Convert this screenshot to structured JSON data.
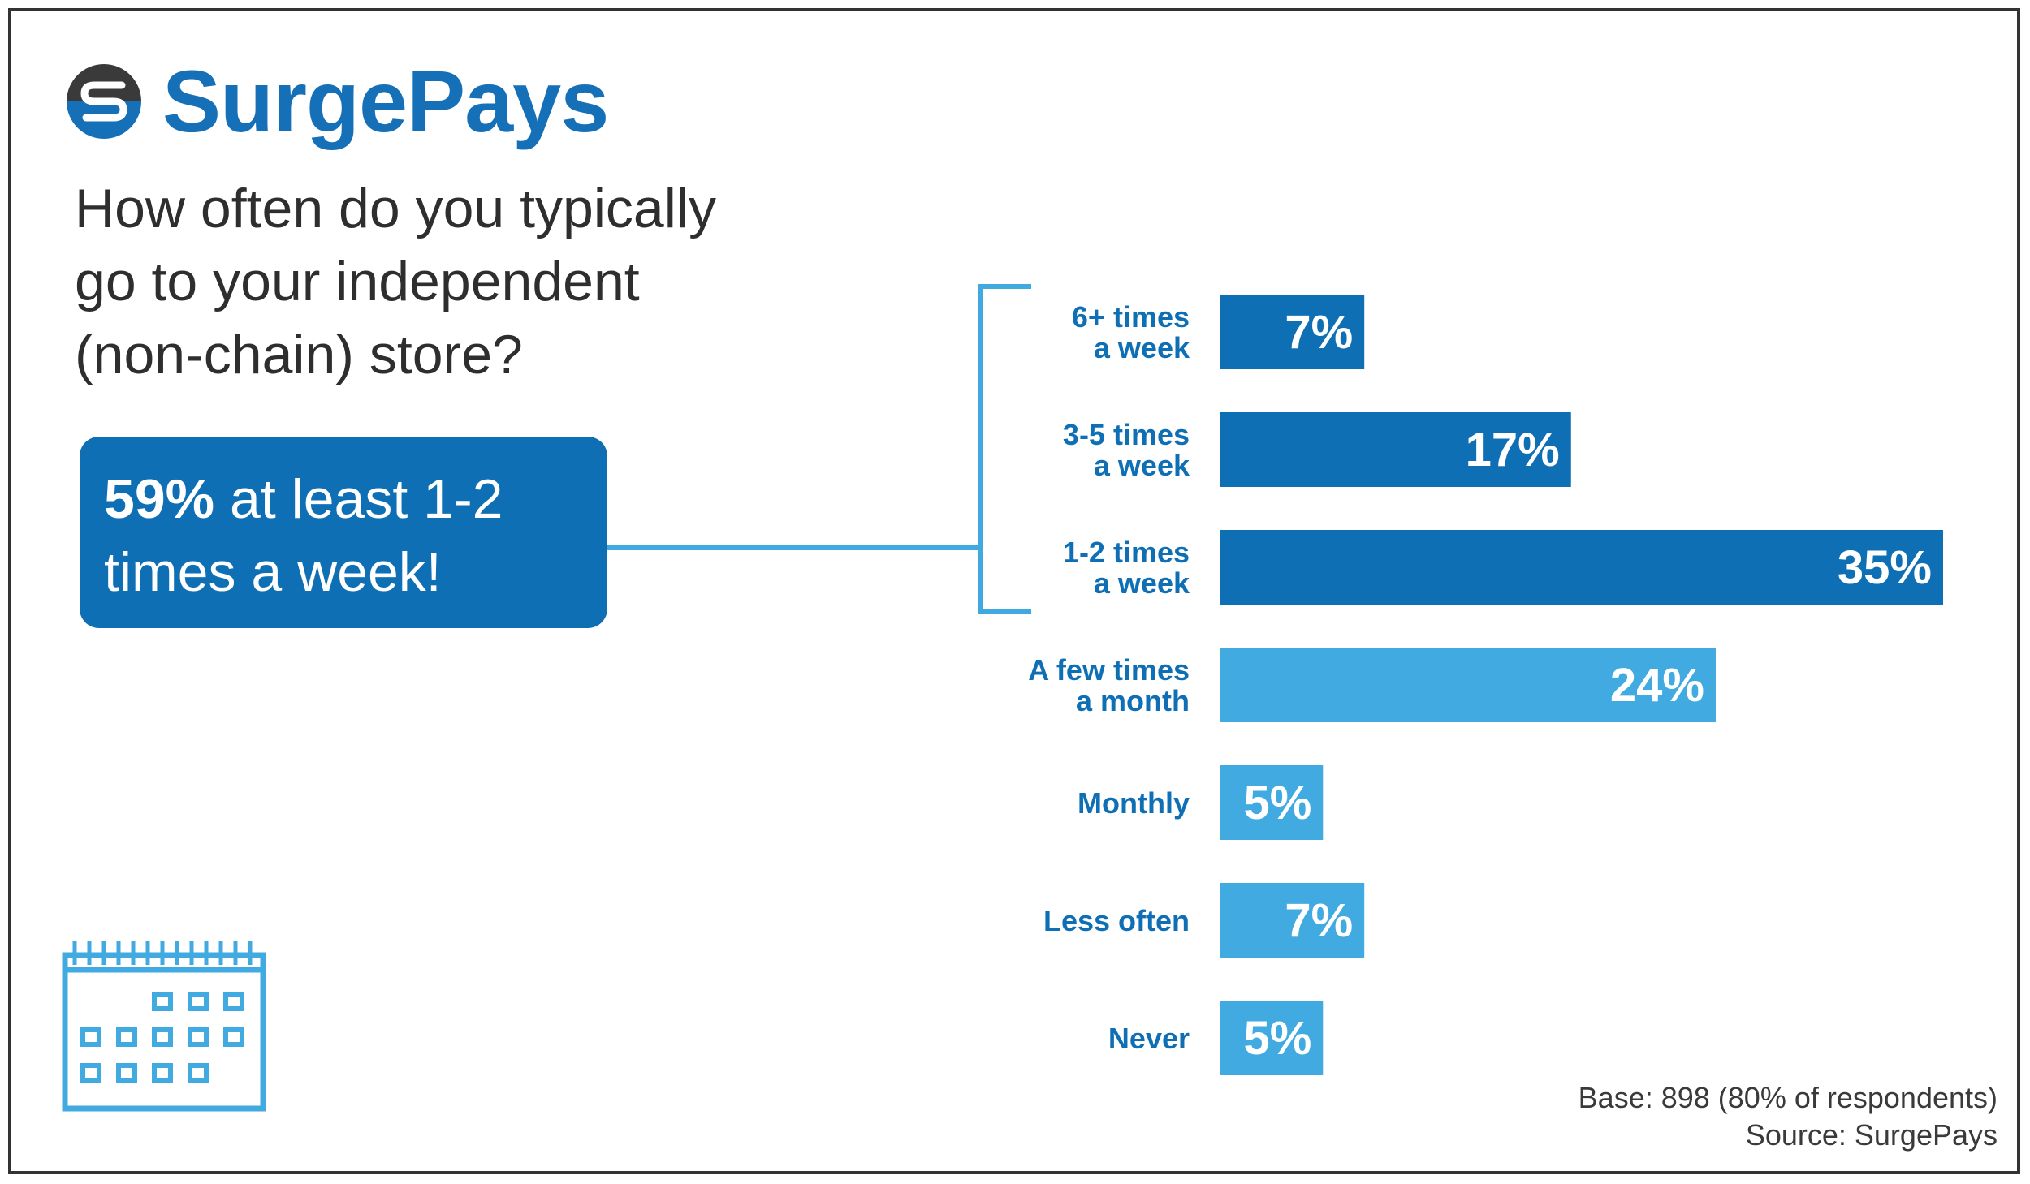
{
  "brand": {
    "name": "SurgePays",
    "logo_icon": "surgepays-s-logo-icon"
  },
  "question": {
    "line1": "How often do you typically",
    "line2": "go to your independent",
    "line3": "(non-chain) store?"
  },
  "callout": {
    "bold": "59%",
    "rest1": " at least 1-2",
    "line2": "times a week!"
  },
  "chart_data": {
    "type": "bar",
    "orientation": "horizontal",
    "title": "How often do you typically go to your independent (non-chain) store?",
    "categories": [
      [
        "6+ times",
        "a week"
      ],
      [
        "3-5 times",
        "a week"
      ],
      [
        "1-2 times",
        "a week"
      ],
      [
        "A few times",
        "a month"
      ],
      [
        "Monthly"
      ],
      [
        "Less often"
      ],
      [
        "Never"
      ]
    ],
    "values": [
      7,
      17,
      35,
      24,
      5,
      7,
      5
    ],
    "value_labels": [
      "7%",
      "17%",
      "35%",
      "24%",
      "5%",
      "7%",
      "5%"
    ],
    "unit": "%",
    "xlim": [
      0,
      35
    ],
    "grid": false,
    "legend": "none",
    "bracketed_group": [
      0,
      1,
      2
    ],
    "colors": {
      "dark_bar": "#0f6fb5",
      "light_bar": "#41aae1",
      "label_text": "#0f6fb5",
      "bracket": "#3fa9e0"
    }
  },
  "footnote": {
    "base": "Base: 898 (80% of respondents)",
    "source": "Source: SurgePays"
  },
  "icons": {
    "calendar": "calendar-icon"
  }
}
